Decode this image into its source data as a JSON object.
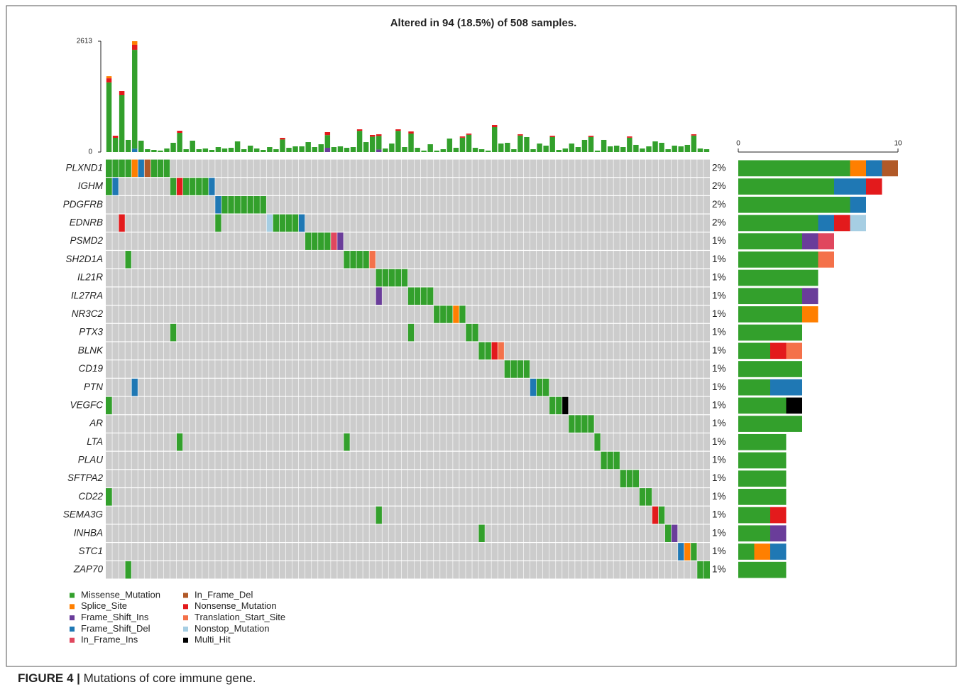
{
  "chart_data": {
    "type": "oncoplot",
    "title": "Altered in 94 (18.5%) of 508 samples.",
    "caption_label": "FIGURE 4 |",
    "caption": " Mutations of core immune gene.",
    "mutation_types": [
      {
        "name": "Missense_Mutation",
        "color": "#33a02c"
      },
      {
        "name": "Splice_Site",
        "color": "#ff7f00"
      },
      {
        "name": "Frame_Shift_Ins",
        "color": "#6a3d9a"
      },
      {
        "name": "Frame_Shift_Del",
        "color": "#1f78b4"
      },
      {
        "name": "In_Frame_Ins",
        "color": "#e0475e"
      },
      {
        "name": "In_Frame_Del",
        "color": "#b15928"
      },
      {
        "name": "Nonsense_Mutation",
        "color": "#e31a1c"
      },
      {
        "name": "Translation_Start_Site",
        "color": "#f4714a"
      },
      {
        "name": "Nonstop_Mutation",
        "color": "#a6cee3"
      },
      {
        "name": "Multi_Hit",
        "color": "#000000"
      }
    ],
    "ylim": [
      0,
      2613
    ],
    "yticks": [
      0,
      2613
    ],
    "xlim": [
      0,
      10
    ],
    "xticks": [
      0,
      10
    ],
    "tmb": [
      [
        [
          0,
          1640
        ],
        [
          6,
          100
        ],
        [
          1,
          50
        ]
      ],
      [
        [
          0,
          335
        ],
        [
          6,
          50
        ]
      ],
      [
        [
          0,
          1340
        ],
        [
          6,
          100
        ]
      ],
      [
        [
          0,
          285
        ]
      ],
      [
        [
          3,
          80
        ],
        [
          0,
          2330
        ],
        [
          6,
          120
        ],
        [
          1,
          83
        ]
      ],
      [
        [
          0,
          268
        ]
      ],
      [
        [
          0,
          67
        ]
      ],
      [
        [
          0,
          50
        ]
      ],
      [
        [
          0,
          34
        ]
      ],
      [
        [
          0,
          84
        ]
      ],
      [
        [
          0,
          218
        ]
      ],
      [
        [
          0,
          452
        ],
        [
          6,
          50
        ]
      ],
      [
        [
          0,
          67
        ]
      ],
      [
        [
          0,
          268
        ]
      ],
      [
        [
          0,
          67
        ]
      ],
      [
        [
          0,
          84
        ]
      ],
      [
        [
          0,
          50
        ]
      ],
      [
        [
          0,
          117
        ]
      ],
      [
        [
          0,
          84
        ]
      ],
      [
        [
          0,
          100
        ]
      ],
      [
        [
          0,
          251
        ]
      ],
      [
        [
          0,
          67
        ]
      ],
      [
        [
          0,
          151
        ]
      ],
      [
        [
          0,
          84
        ]
      ],
      [
        [
          0,
          50
        ]
      ],
      [
        [
          0,
          117
        ]
      ],
      [
        [
          0,
          67
        ]
      ],
      [
        [
          0,
          295
        ],
        [
          6,
          40
        ]
      ],
      [
        [
          0,
          100
        ]
      ],
      [
        [
          0,
          134
        ]
      ],
      [
        [
          0,
          134
        ]
      ],
      [
        [
          0,
          234
        ]
      ],
      [
        [
          0,
          117
        ]
      ],
      [
        [
          0,
          184
        ]
      ],
      [
        [
          2,
          100
        ],
        [
          0,
          299
        ],
        [
          6,
          70
        ]
      ],
      [
        [
          0,
          117
        ]
      ],
      [
        [
          0,
          134
        ]
      ],
      [
        [
          0,
          100
        ]
      ],
      [
        [
          0,
          117
        ]
      ],
      [
        [
          0,
          500
        ],
        [
          6,
          36
        ]
      ],
      [
        [
          0,
          234
        ]
      ],
      [
        [
          0,
          362
        ],
        [
          6,
          40
        ]
      ],
      [
        [
          2,
          60
        ],
        [
          0,
          319
        ],
        [
          6,
          40
        ]
      ],
      [
        [
          0,
          84
        ]
      ],
      [
        [
          0,
          201
        ]
      ],
      [
        [
          0,
          500
        ],
        [
          6,
          36
        ]
      ],
      [
        [
          0,
          117
        ]
      ],
      [
        [
          0,
          436
        ],
        [
          6,
          50
        ]
      ],
      [
        [
          0,
          100
        ]
      ],
      [
        [
          0,
          34
        ]
      ],
      [
        [
          0,
          184
        ]
      ],
      [
        [
          0,
          34
        ]
      ],
      [
        [
          0,
          67
        ]
      ],
      [
        [
          0,
          318
        ]
      ],
      [
        [
          0,
          100
        ]
      ],
      [
        [
          0,
          338
        ],
        [
          6,
          30
        ]
      ],
      [
        [
          0,
          406
        ],
        [
          6,
          30
        ]
      ],
      [
        [
          0,
          100
        ]
      ],
      [
        [
          0,
          67
        ]
      ],
      [
        [
          0,
          34
        ]
      ],
      [
        [
          0,
          586
        ],
        [
          6,
          50
        ]
      ],
      [
        [
          0,
          201
        ]
      ],
      [
        [
          0,
          218
        ]
      ],
      [
        [
          0,
          67
        ]
      ],
      [
        [
          0,
          389
        ],
        [
          6,
          30
        ]
      ],
      [
        [
          0,
          352
        ]
      ],
      [
        [
          0,
          67
        ]
      ],
      [
        [
          0,
          201
        ]
      ],
      [
        [
          0,
          151
        ]
      ],
      [
        [
          0,
          355
        ],
        [
          6,
          30
        ]
      ],
      [
        [
          0,
          50
        ]
      ],
      [
        [
          0,
          84
        ]
      ],
      [
        [
          0,
          201
        ]
      ],
      [
        [
          0,
          117
        ]
      ],
      [
        [
          0,
          285
        ]
      ],
      [
        [
          0,
          355
        ],
        [
          6,
          30
        ]
      ],
      [
        [
          0,
          34
        ]
      ],
      [
        [
          0,
          285
        ]
      ],
      [
        [
          0,
          134
        ]
      ],
      [
        [
          0,
          151
        ]
      ],
      [
        [
          0,
          117
        ]
      ],
      [
        [
          0,
          338
        ],
        [
          6,
          30
        ]
      ],
      [
        [
          0,
          168
        ]
      ],
      [
        [
          0,
          84
        ]
      ],
      [
        [
          0,
          134
        ]
      ],
      [
        [
          0,
          251
        ]
      ],
      [
        [
          0,
          218
        ]
      ],
      [
        [
          0,
          67
        ]
      ],
      [
        [
          0,
          151
        ]
      ],
      [
        [
          0,
          134
        ]
      ],
      [
        [
          0,
          168
        ]
      ],
      [
        [
          0,
          389
        ],
        [
          6,
          30
        ]
      ],
      [
        [
          0,
          84
        ]
      ],
      [
        [
          0,
          67
        ]
      ]
    ],
    "genes": [
      {
        "name": "PLXND1",
        "pct": "2%",
        "cells": [
          [
            0,
            0
          ],
          [
            1,
            0
          ],
          [
            2,
            0
          ],
          [
            3,
            0
          ],
          [
            4,
            1
          ],
          [
            5,
            3
          ],
          [
            6,
            5
          ],
          [
            7,
            0
          ],
          [
            8,
            0
          ],
          [
            9,
            0
          ]
        ],
        "counts": [
          [
            0,
            7
          ],
          [
            1,
            1
          ],
          [
            3,
            1
          ],
          [
            5,
            1
          ]
        ]
      },
      {
        "name": "IGHM",
        "pct": "2%",
        "cells": [
          [
            0,
            0
          ],
          [
            1,
            3
          ],
          [
            10,
            0
          ],
          [
            11,
            6
          ],
          [
            12,
            0
          ],
          [
            13,
            0
          ],
          [
            14,
            0
          ],
          [
            15,
            0
          ],
          [
            16,
            3
          ]
        ],
        "counts": [
          [
            0,
            6
          ],
          [
            3,
            2
          ],
          [
            6,
            1
          ]
        ]
      },
      {
        "name": "PDGFRB",
        "pct": "2%",
        "cells": [
          [
            17,
            3
          ],
          [
            18,
            0
          ],
          [
            19,
            0
          ],
          [
            20,
            0
          ],
          [
            21,
            0
          ],
          [
            22,
            0
          ],
          [
            23,
            0
          ],
          [
            24,
            0
          ]
        ],
        "counts": [
          [
            0,
            7
          ],
          [
            3,
            1
          ]
        ]
      },
      {
        "name": "EDNRB",
        "pct": "2%",
        "cells": [
          [
            2,
            6
          ],
          [
            17,
            0
          ],
          [
            25,
            8
          ],
          [
            26,
            0
          ],
          [
            27,
            0
          ],
          [
            28,
            0
          ],
          [
            29,
            0
          ],
          [
            30,
            3
          ]
        ],
        "counts": [
          [
            0,
            5
          ],
          [
            3,
            1
          ],
          [
            6,
            1
          ],
          [
            8,
            1
          ]
        ]
      },
      {
        "name": "PSMD2",
        "pct": "1%",
        "cells": [
          [
            31,
            0
          ],
          [
            32,
            0
          ],
          [
            33,
            0
          ],
          [
            34,
            0
          ],
          [
            35,
            4
          ],
          [
            36,
            2
          ]
        ],
        "counts": [
          [
            0,
            4
          ],
          [
            2,
            1
          ],
          [
            4,
            1
          ]
        ]
      },
      {
        "name": "SH2D1A",
        "pct": "1%",
        "cells": [
          [
            3,
            0
          ],
          [
            37,
            0
          ],
          [
            38,
            0
          ],
          [
            39,
            0
          ],
          [
            40,
            0
          ],
          [
            41,
            7
          ]
        ],
        "counts": [
          [
            0,
            5
          ],
          [
            7,
            1
          ]
        ]
      },
      {
        "name": "IL21R",
        "pct": "1%",
        "cells": [
          [
            42,
            0
          ],
          [
            43,
            0
          ],
          [
            44,
            0
          ],
          [
            45,
            0
          ],
          [
            46,
            0
          ]
        ],
        "counts": [
          [
            0,
            5
          ]
        ]
      },
      {
        "name": "IL27RA",
        "pct": "1%",
        "cells": [
          [
            42,
            2
          ],
          [
            47,
            0
          ],
          [
            48,
            0
          ],
          [
            49,
            0
          ],
          [
            50,
            0
          ]
        ],
        "counts": [
          [
            0,
            4
          ],
          [
            2,
            1
          ]
        ]
      },
      {
        "name": "NR3C2",
        "pct": "1%",
        "cells": [
          [
            51,
            0
          ],
          [
            52,
            0
          ],
          [
            53,
            0
          ],
          [
            54,
            1
          ],
          [
            55,
            0
          ]
        ],
        "counts": [
          [
            0,
            4
          ],
          [
            1,
            1
          ]
        ]
      },
      {
        "name": "PTX3",
        "pct": "1%",
        "cells": [
          [
            10,
            0
          ],
          [
            47,
            0
          ],
          [
            56,
            0
          ],
          [
            57,
            0
          ]
        ],
        "counts": [
          [
            0,
            4
          ]
        ]
      },
      {
        "name": "BLNK",
        "pct": "1%",
        "cells": [
          [
            58,
            0
          ],
          [
            59,
            0
          ],
          [
            60,
            6
          ],
          [
            61,
            7
          ]
        ],
        "counts": [
          [
            0,
            2
          ],
          [
            6,
            1
          ],
          [
            7,
            1
          ]
        ]
      },
      {
        "name": "CD19",
        "pct": "1%",
        "cells": [
          [
            62,
            0
          ],
          [
            63,
            0
          ],
          [
            64,
            0
          ],
          [
            65,
            0
          ]
        ],
        "counts": [
          [
            0,
            4
          ]
        ]
      },
      {
        "name": "PTN",
        "pct": "1%",
        "cells": [
          [
            4,
            3
          ],
          [
            66,
            3
          ],
          [
            67,
            0
          ],
          [
            68,
            0
          ]
        ],
        "counts": [
          [
            0,
            2
          ],
          [
            3,
            2
          ]
        ]
      },
      {
        "name": "VEGFC",
        "pct": "1%",
        "cells": [
          [
            0,
            0
          ],
          [
            69,
            0
          ],
          [
            70,
            0
          ],
          [
            71,
            9
          ]
        ],
        "counts": [
          [
            0,
            3
          ],
          [
            9,
            1
          ]
        ]
      },
      {
        "name": "AR",
        "pct": "1%",
        "cells": [
          [
            72,
            0
          ],
          [
            73,
            0
          ],
          [
            74,
            0
          ],
          [
            75,
            0
          ]
        ],
        "counts": [
          [
            0,
            4
          ]
        ]
      },
      {
        "name": "LTA",
        "pct": "1%",
        "cells": [
          [
            11,
            0
          ],
          [
            37,
            0
          ],
          [
            76,
            0
          ]
        ],
        "counts": [
          [
            0,
            3
          ]
        ]
      },
      {
        "name": "PLAU",
        "pct": "1%",
        "cells": [
          [
            77,
            0
          ],
          [
            78,
            0
          ],
          [
            79,
            0
          ]
        ],
        "counts": [
          [
            0,
            3
          ]
        ]
      },
      {
        "name": "SFTPA2",
        "pct": "1%",
        "cells": [
          [
            80,
            0
          ],
          [
            81,
            0
          ],
          [
            82,
            0
          ]
        ],
        "counts": [
          [
            0,
            3
          ]
        ]
      },
      {
        "name": "CD22",
        "pct": "1%",
        "cells": [
          [
            0,
            0
          ],
          [
            83,
            0
          ],
          [
            84,
            0
          ]
        ],
        "counts": [
          [
            0,
            3
          ]
        ]
      },
      {
        "name": "SEMA3G",
        "pct": "1%",
        "cells": [
          [
            42,
            0
          ],
          [
            85,
            6
          ],
          [
            86,
            0
          ]
        ],
        "counts": [
          [
            0,
            2
          ],
          [
            6,
            1
          ]
        ]
      },
      {
        "name": "INHBA",
        "pct": "1%",
        "cells": [
          [
            58,
            0
          ],
          [
            87,
            0
          ],
          [
            88,
            2
          ]
        ],
        "counts": [
          [
            0,
            2
          ],
          [
            2,
            1
          ]
        ]
      },
      {
        "name": "STC1",
        "pct": "1%",
        "cells": [
          [
            89,
            3
          ],
          [
            90,
            1
          ],
          [
            91,
            0
          ]
        ],
        "counts": [
          [
            0,
            1
          ],
          [
            1,
            1
          ],
          [
            3,
            1
          ]
        ]
      },
      {
        "name": "ZAP70",
        "pct": "1%",
        "cells": [
          [
            3,
            0
          ],
          [
            92,
            0
          ],
          [
            93,
            0
          ]
        ],
        "counts": [
          [
            0,
            3
          ]
        ]
      }
    ]
  }
}
